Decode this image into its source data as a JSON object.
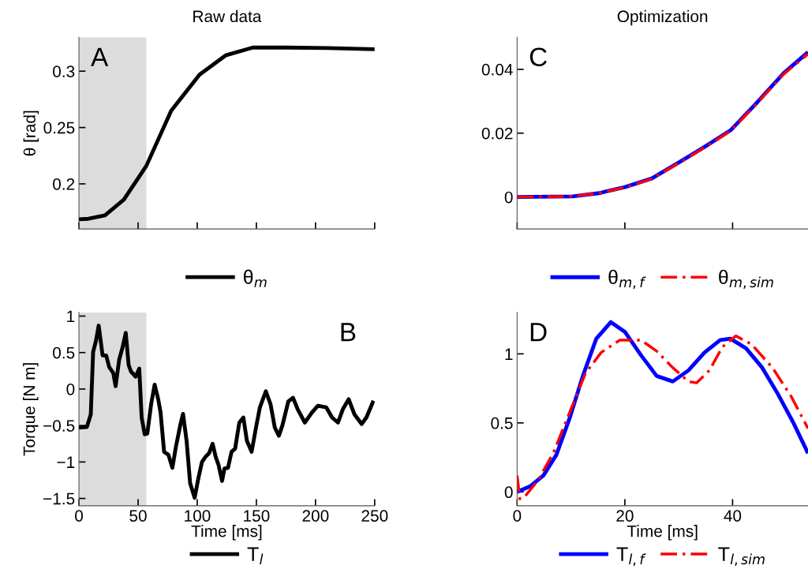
{
  "chart_data": [
    {
      "type": "line",
      "title": "Raw data",
      "ylabel": "θ [rad]",
      "annotations": [
        "A"
      ],
      "xlim": [
        0,
        250
      ],
      "ylim": [
        0.16,
        0.33
      ],
      "xticks": [
        {
          "value": 0,
          "label": null
        },
        {
          "value": 50,
          "label": null
        },
        {
          "value": 100,
          "label": null
        },
        {
          "value": 150,
          "label": null
        },
        {
          "value": 200,
          "label": null
        },
        {
          "value": 250,
          "label": null
        }
      ],
      "yticks": [
        0.2,
        0.25,
        0.3
      ],
      "tick_labels": "y",
      "grid": false,
      "legend": "bottom",
      "line_style": "solid",
      "bands": [
        {
          "axis": "x",
          "from": 0,
          "to": 57,
          "color": "#dcdcdc"
        }
      ],
      "series": [
        {
          "name": "θ$_{m}$",
          "color": "#000000",
          "x": [
            0,
            8,
            22,
            38,
            57,
            78,
            102,
            124,
            147,
            175,
            210,
            250
          ],
          "values": [
            0.1685,
            0.169,
            0.172,
            0.186,
            0.216,
            0.265,
            0.297,
            0.314,
            0.321,
            0.321,
            0.3205,
            0.3195
          ]
        }
      ]
    },
    {
      "type": "line",
      "xlabel": "Time [ms]",
      "ylabel": "Torque [N m]",
      "annotations": [
        "B"
      ],
      "xlim": [
        0,
        250
      ],
      "ylim": [
        -1.6,
        1.05
      ],
      "xticks": [
        0,
        50,
        100,
        150,
        200,
        250
      ],
      "yticks": [
        -1.5,
        -1,
        -0.5,
        0,
        0.5,
        1
      ],
      "grid": false,
      "legend": "bottom",
      "line_style": "solid",
      "bands": [
        {
          "axis": "x",
          "from": 0,
          "to": 57,
          "color": "#dcdcdc"
        }
      ],
      "series": [
        {
          "name": "T$_{l}$",
          "color": "#000000",
          "x": [
            0,
            6.7,
            10,
            12,
            14.4,
            16.7,
            20,
            23,
            25.6,
            29,
            31,
            34,
            37,
            39.6,
            42,
            44,
            48,
            51,
            53,
            55.6,
            57.8,
            61,
            64,
            67,
            69,
            72,
            75.6,
            79,
            82,
            85.6,
            88,
            91,
            94,
            97.8,
            101,
            104,
            107,
            110,
            113,
            115.6,
            118,
            121,
            123,
            126,
            129,
            132,
            135.6,
            139,
            142,
            146,
            150,
            153,
            158,
            162,
            165.6,
            169,
            172,
            177,
            181,
            185,
            191,
            197,
            202,
            209,
            214,
            219,
            223,
            228,
            233,
            239,
            243,
            249
          ],
          "values": [
            -0.53,
            -0.52,
            -0.35,
            0.51,
            0.66,
            0.87,
            0.46,
            0.46,
            0.3,
            0.22,
            0.04,
            0.4,
            0.58,
            0.77,
            0.33,
            0.24,
            0.17,
            0.28,
            -0.39,
            -0.62,
            -0.61,
            -0.21,
            0.06,
            -0.14,
            -0.32,
            -0.86,
            -0.9,
            -1.08,
            -0.79,
            -0.5,
            -0.34,
            -0.71,
            -1.29,
            -1.49,
            -1.22,
            -1.0,
            -0.93,
            -0.88,
            -0.75,
            -0.93,
            -1.04,
            -1.26,
            -1.09,
            -1.08,
            -0.86,
            -0.82,
            -0.46,
            -0.39,
            -0.71,
            -0.86,
            -0.5,
            -0.25,
            -0.03,
            -0.21,
            -0.53,
            -0.64,
            -0.5,
            -0.17,
            -0.12,
            -0.28,
            -0.46,
            -0.32,
            -0.23,
            -0.25,
            -0.39,
            -0.46,
            -0.28,
            -0.14,
            -0.35,
            -0.48,
            -0.39,
            -0.16
          ]
        }
      ]
    },
    {
      "type": "line",
      "title": "Optimization",
      "annotations": [
        "C"
      ],
      "xlim": [
        0,
        54
      ],
      "ylim": [
        -0.01,
        0.05
      ],
      "xticks": [
        {
          "value": 0,
          "label": null
        },
        {
          "value": 20,
          "label": null
        },
        {
          "value": 40,
          "label": null
        }
      ],
      "yticks": [
        0,
        0.02,
        0.04
      ],
      "tick_labels": "y",
      "grid": false,
      "legend": "bottom",
      "series": [
        {
          "name": "θ$_{m,f}$",
          "color": "#0000ff",
          "line_style": "solid",
          "x": [
            0,
            10.3,
            15.2,
            20,
            25,
            29.9,
            34.8,
            39.7,
            44.6,
            49.5,
            54
          ],
          "values": [
            0,
            0.0002,
            0.0012,
            0.0031,
            0.0058,
            0.0107,
            0.0157,
            0.021,
            0.0297,
            0.0388,
            0.0454
          ]
        },
        {
          "name": "θ$_{m,sim}$",
          "color": "#ff0000",
          "line_style": "dashed",
          "x": [
            0,
            10.3,
            15.2,
            20,
            25,
            29.9,
            34.8,
            39.7,
            44.6,
            49.5,
            54
          ],
          "values": [
            0,
            0.0002,
            0.0012,
            0.003,
            0.0057,
            0.0105,
            0.0155,
            0.0208,
            0.0295,
            0.0385,
            0.0448
          ]
        }
      ]
    },
    {
      "type": "line",
      "xlabel": "Time [ms]",
      "annotations": [
        "D"
      ],
      "xlim": [
        0,
        54
      ],
      "ylim": [
        -0.1,
        1.3
      ],
      "xticks": [
        0,
        20,
        40
      ],
      "yticks": [
        0,
        0.5,
        1
      ],
      "grid": false,
      "legend": "bottom",
      "series": [
        {
          "name": "T$_{l,f}$",
          "color": "#0000ff",
          "line_style": "solid",
          "x": [
            0,
            2.4,
            4.9,
            7.3,
            9.8,
            12.2,
            14.7,
            17.4,
            20,
            23,
            25.9,
            28.9,
            31.8,
            34.8,
            37.7,
            39.6,
            42.5,
            45.5,
            48.4,
            51.3,
            54
          ],
          "values": [
            0,
            0.04,
            0.12,
            0.27,
            0.54,
            0.84,
            1.11,
            1.23,
            1.16,
            0.99,
            0.84,
            0.8,
            0.88,
            1.01,
            1.1,
            1.11,
            1.04,
            0.9,
            0.71,
            0.5,
            0.28
          ]
        },
        {
          "name": "T$_{l,sim}$",
          "color": "#ff0000",
          "line_style": "dashed",
          "x": [
            0,
            0.5,
            1.5,
            3.9,
            6.8,
            9.8,
            12.7,
            15.6,
            19.1,
            23,
            25.9,
            28.9,
            31.8,
            33.3,
            35.7,
            38.1,
            40.6,
            43.5,
            47.4,
            50.9,
            54
          ],
          "values": [
            0.12,
            -0.05,
            -0.03,
            0.085,
            0.29,
            0.58,
            0.86,
            1.01,
            1.1,
            1.1,
            1.02,
            0.9,
            0.8,
            0.79,
            0.88,
            1.05,
            1.13,
            1.07,
            0.9,
            0.69,
            0.46
          ]
        }
      ]
    }
  ]
}
